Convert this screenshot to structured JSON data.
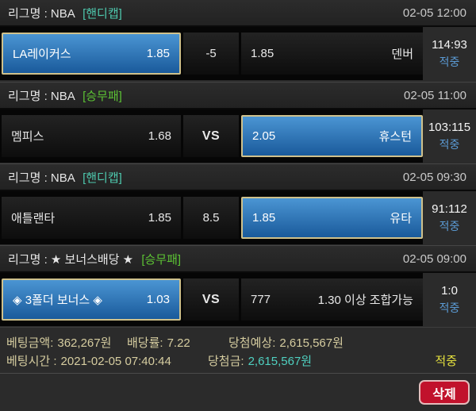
{
  "matches": [
    {
      "league": "리그명 : NBA",
      "market": "[핸디캡]",
      "time": "02-05 12:00",
      "home_name": "LA레이커스",
      "home_odds": "1.85",
      "mid": "-5",
      "away_odds": "1.85",
      "away_name": "덴버",
      "score": "114:93",
      "result": "적중"
    },
    {
      "league": "리그명 : NBA",
      "market": "[승무패]",
      "time": "02-05 11:00",
      "home_name": "멤피스",
      "home_odds": "1.68",
      "mid": "VS",
      "away_odds": "2.05",
      "away_name": "휴스턴",
      "score": "103:115",
      "result": "적중"
    },
    {
      "league": "리그명 : NBA",
      "market": "[핸디캡]",
      "time": "02-05 09:30",
      "home_name": "애틀랜타",
      "home_odds": "1.85",
      "mid": "8.5",
      "away_odds": "1.85",
      "away_name": "유타",
      "score": "91:112",
      "result": "적중"
    },
    {
      "league": "리그명 : ★ 보너스배당 ★",
      "market": "[승무패]",
      "time": "02-05 09:00",
      "home_name": "◈ 3폴더 보너스 ◈",
      "home_odds": "1.03",
      "mid": "VS",
      "away_odds": "777",
      "away_name": "1.30 이상 조합가능",
      "score": "1:0",
      "result": "적중"
    }
  ],
  "summary": {
    "bet_amount_label": "베팅금액:",
    "bet_amount_value": "362,267원",
    "odds_rate_label": "배당률:",
    "odds_rate_value": "7.22",
    "expected_label": "당첨예상:",
    "expected_value": "2,615,567원",
    "bet_time_label": "베팅시간 :",
    "bet_time_value": "2021-02-05 07:40:44",
    "prize_label": "당첨금:",
    "prize_value": "2,615,567원",
    "result": "적중"
  },
  "footer": {
    "delete_label": "삭제"
  },
  "colors": {
    "selected_cell_top": "#4b95d3",
    "selected_cell_bottom": "#1a5a9b",
    "selected_border": "#cfc18c",
    "market_handicap": "#4ec9ae",
    "market_winlose": "#5cc234",
    "hit_blue": "#5b9bd5",
    "summary_khaki": "#d6cda0",
    "prize_cyan": "#4fd0c0",
    "hit_yellow": "#e6e23e",
    "delete_red": "#c1122c"
  }
}
